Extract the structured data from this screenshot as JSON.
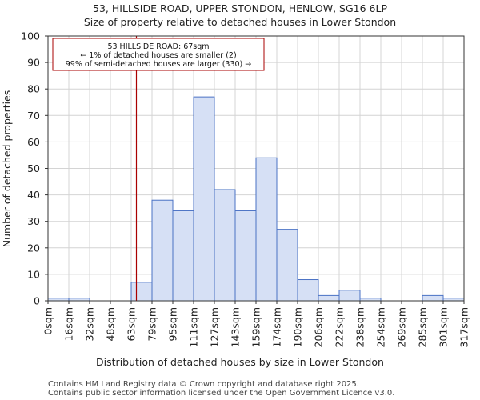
{
  "chart_data": {
    "type": "bar",
    "title_line1": "53, HILLSIDE ROAD, UPPER STONDON, HENLOW, SG16 6LP",
    "title_line2": "Size of property relative to detached houses in Lower Stondon",
    "xlabel": "Distribution of detached houses by size in Lower Stondon",
    "ylabel": "Number of detached properties",
    "ylim": [
      0,
      100
    ],
    "yticks": [
      0,
      10,
      20,
      30,
      40,
      50,
      60,
      70,
      80,
      90,
      100
    ],
    "tick_labels": [
      "0sqm",
      "16sqm",
      "32sqm",
      "48sqm",
      "63sqm",
      "79sqm",
      "95sqm",
      "111sqm",
      "127sqm",
      "143sqm",
      "159sqm",
      "174sqm",
      "190sqm",
      "206sqm",
      "222sqm",
      "238sqm",
      "254sqm",
      "269sqm",
      "285sqm",
      "301sqm",
      "317sqm"
    ],
    "values": [
      1,
      1,
      0,
      0,
      7,
      38,
      34,
      77,
      42,
      34,
      54,
      27,
      8,
      2,
      4,
      1,
      0,
      0,
      2,
      1
    ],
    "bar_color": "#d6e0f5",
    "bar_edge_color": "#4a72c4",
    "marker": {
      "value_sqm": 67,
      "color": "#aa0000",
      "annotation": [
        "53 HILLSIDE ROAD: 67sqm",
        "← 1% of detached houses are smaller (2)",
        "99% of semi-detached houses are larger (330) →"
      ]
    }
  },
  "footer": {
    "line1": "Contains HM Land Registry data © Crown copyright and database right 2025.",
    "line2": "Contains public sector information licensed under the Open Government Licence v3.0."
  }
}
